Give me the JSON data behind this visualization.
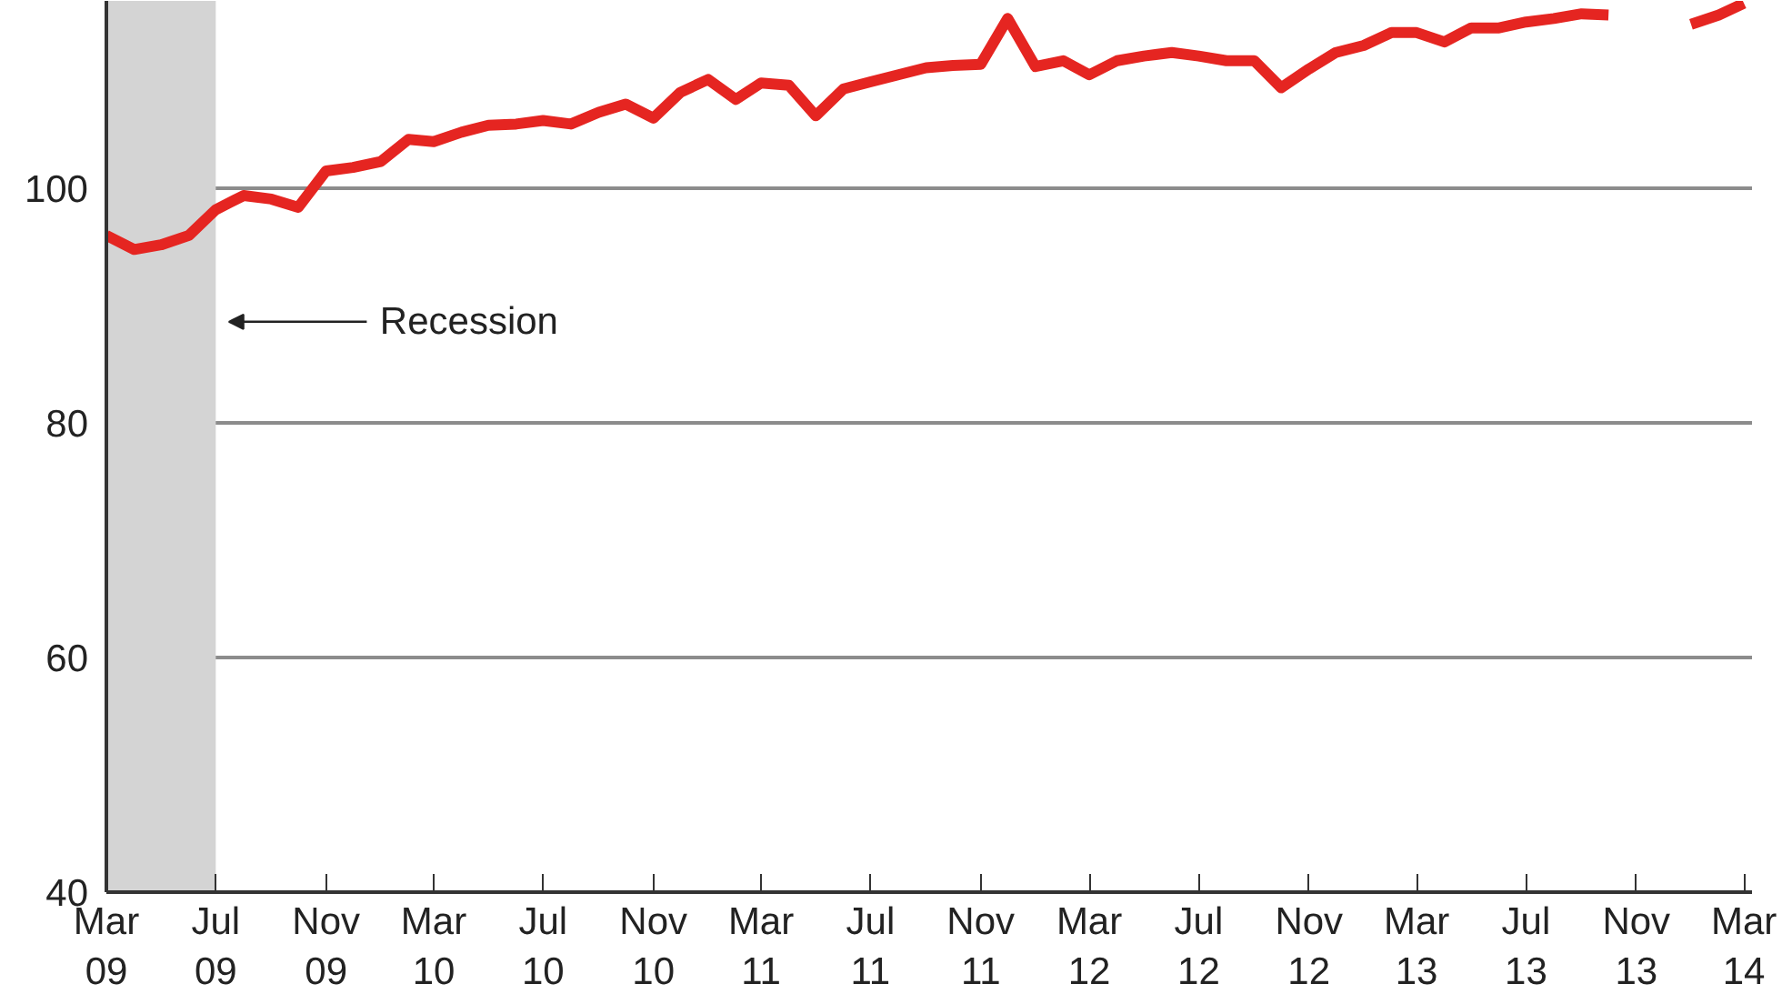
{
  "chart_data": {
    "type": "line",
    "x": [
      "2009-03",
      "2009-04",
      "2009-05",
      "2009-06",
      "2009-07",
      "2009-08",
      "2009-09",
      "2009-10",
      "2009-11",
      "2009-12",
      "2010-01",
      "2010-02",
      "2010-03",
      "2010-04",
      "2010-05",
      "2010-06",
      "2010-07",
      "2010-08",
      "2010-09",
      "2010-10",
      "2010-11",
      "2010-12",
      "2011-01",
      "2011-02",
      "2011-03",
      "2011-04",
      "2011-05",
      "2011-06",
      "2011-07",
      "2011-08",
      "2011-09",
      "2011-10",
      "2011-11",
      "2011-12",
      "2012-01",
      "2012-02",
      "2012-03",
      "2012-04",
      "2012-05",
      "2012-06",
      "2012-07",
      "2012-08",
      "2012-09",
      "2012-10",
      "2012-11",
      "2012-12",
      "2013-01",
      "2013-02",
      "2013-03",
      "2013-04",
      "2013-05",
      "2013-06",
      "2013-07",
      "2013-08",
      "2013-09",
      "2013-10",
      "2013-11",
      "2013-12",
      "2014-01",
      "2014-02",
      "2014-03"
    ],
    "series": [
      {
        "color": "#e52521",
        "values": [
          96.0,
          94.8,
          95.2,
          96.0,
          98.2,
          99.4,
          99.1,
          98.4,
          101.5,
          101.8,
          102.3,
          104.2,
          104.0,
          104.8,
          105.4,
          105.5,
          105.8,
          105.5,
          106.5,
          107.2,
          106.0,
          108.2,
          109.3,
          107.6,
          109.0,
          108.8,
          106.2,
          108.5,
          109.1,
          109.7,
          110.3,
          110.5,
          110.6,
          114.5,
          110.4,
          110.9,
          109.7,
          110.9,
          111.3,
          111.6,
          111.3,
          110.9,
          110.9,
          108.6,
          110.2,
          111.6,
          112.2,
          113.3,
          113.3,
          112.5,
          113.7,
          113.7,
          114.2,
          114.5,
          114.9,
          114.8,
          null,
          null,
          114.0,
          114.8,
          115.8
        ]
      }
    ],
    "xlim": [
      "2009-03",
      "2014-03-10"
    ],
    "xticks": [
      {
        "value": "2009-03",
        "label": "Mar\n09"
      },
      {
        "value": "2009-07",
        "label": "Jul\n09"
      },
      {
        "value": "2009-11",
        "label": "Nov\n09"
      },
      {
        "value": "2010-03",
        "label": "Mar\n10"
      },
      {
        "value": "2010-07",
        "label": "Jul\n10"
      },
      {
        "value": "2010-11",
        "label": "Nov\n10"
      },
      {
        "value": "2011-03",
        "label": "Mar\n11"
      },
      {
        "value": "2011-07",
        "label": "Jul\n11"
      },
      {
        "value": "2011-11",
        "label": "Nov\n11"
      },
      {
        "value": "2012-03",
        "label": "Mar\n12"
      },
      {
        "value": "2012-07",
        "label": "Jul\n12"
      },
      {
        "value": "2012-11",
        "label": "Nov\n12"
      },
      {
        "value": "2013-03",
        "label": "Mar\n13"
      },
      {
        "value": "2013-07",
        "label": "Jul\n13"
      },
      {
        "value": "2013-11",
        "label": "Nov\n13"
      },
      {
        "value": "2014-03",
        "label": "Mar\n14"
      }
    ],
    "ylim": [
      40,
      116
    ],
    "yticks": [
      40,
      60,
      80,
      100
    ],
    "grid": "y",
    "bands": [
      {
        "axis": "x",
        "from": "2009-03",
        "to": "2009-07",
        "label": "Recession",
        "color": "#d4d4d4"
      }
    ]
  }
}
